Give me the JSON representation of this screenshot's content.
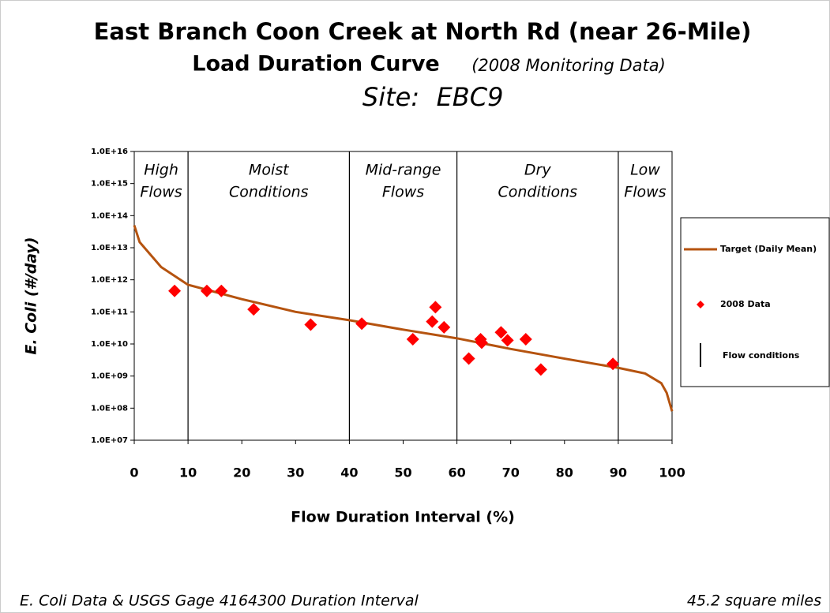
{
  "chart_data": {
    "type": "scatter",
    "title": "East Branch Coon Creek at North Rd (near 26-Mile)",
    "subtitle": "Load Duration Curve",
    "subtitle_note": "(2008 Monitoring Data)",
    "site_label": "Site:",
    "site": "EBC9",
    "x_label": "Flow Duration Interval (%)",
    "y_label": "E. Coli (#/day)",
    "footer_left": "E. Coli Data & USGS Gage 4164300 Duration Interval",
    "footer_right": "45.2 square miles",
    "xlim": [
      0,
      100
    ],
    "xticks": [
      0,
      10,
      20,
      30,
      40,
      50,
      60,
      70,
      80,
      90,
      100
    ],
    "ylim": [
      10000000,
      10000000000000000
    ],
    "yscale": "log",
    "yticks": [
      {
        "value": 10000000,
        "label": "1.0E+07"
      },
      {
        "value": 100000000,
        "label": "1.0E+08"
      },
      {
        "value": 1000000000,
        "label": "1.0E+09"
      },
      {
        "value": 10000000000,
        "label": "1.0E+10"
      },
      {
        "value": 100000000000,
        "label": "1.0E+11"
      },
      {
        "value": 1000000000000,
        "label": "1.0E+12"
      },
      {
        "value": 10000000000000,
        "label": "1.0E+13"
      },
      {
        "value": 100000000000000,
        "label": "1.0E+14"
      },
      {
        "value": 1000000000000000,
        "label": "1.0E+15"
      },
      {
        "value": 10000000000000000,
        "label": "1.0E+16"
      }
    ],
    "flow_breaks": {
      "name": "Flow conditions",
      "color": "#000000",
      "values": [
        10,
        40,
        60,
        90
      ]
    },
    "regions": [
      {
        "lines": [
          "High",
          "Flows"
        ],
        "x": [
          0,
          10
        ]
      },
      {
        "lines": [
          "Moist",
          "Conditions"
        ],
        "x": [
          10,
          40
        ]
      },
      {
        "lines": [
          "Mid-range",
          "Flows"
        ],
        "x": [
          40,
          60
        ]
      },
      {
        "lines": [
          "Dry",
          "Conditions"
        ],
        "x": [
          60,
          90
        ]
      },
      {
        "lines": [
          "Low",
          "Flows"
        ],
        "x": [
          90,
          100
        ]
      }
    ],
    "series": [
      {
        "name": "Target (Daily Mean)",
        "kind": "line",
        "color": "#b5530f",
        "x": [
          0,
          1,
          5,
          10,
          20,
          30,
          40,
          50,
          60,
          70,
          80,
          90,
          95,
          98,
          99,
          100
        ],
        "values": [
          50000000000000,
          15000000000000,
          2500000000000,
          700000000000,
          250000000000,
          100000000000,
          55000000000,
          28000000000,
          15000000000,
          7000000000,
          3500000000,
          1800000000,
          1200000000,
          600000000,
          300000000,
          80000000
        ]
      },
      {
        "name": "2008 Data",
        "kind": "points",
        "color": "#ff0000",
        "x": [
          7.5,
          13.5,
          16.2,
          22.2,
          32.8,
          42.3,
          51.8,
          55.4,
          56,
          57.6,
          62.2,
          64.4,
          64.6,
          68.2,
          69.4,
          72.8,
          75.6,
          89
        ],
        "values": [
          450000000000,
          450000000000,
          450000000000,
          120000000000,
          40000000000,
          43000000000,
          14000000000,
          50000000000,
          140000000000,
          33000000000,
          3500000000,
          14000000000,
          11000000000,
          23000000000,
          13000000000,
          14000000000,
          1600000000,
          2400000000
        ]
      }
    ]
  }
}
